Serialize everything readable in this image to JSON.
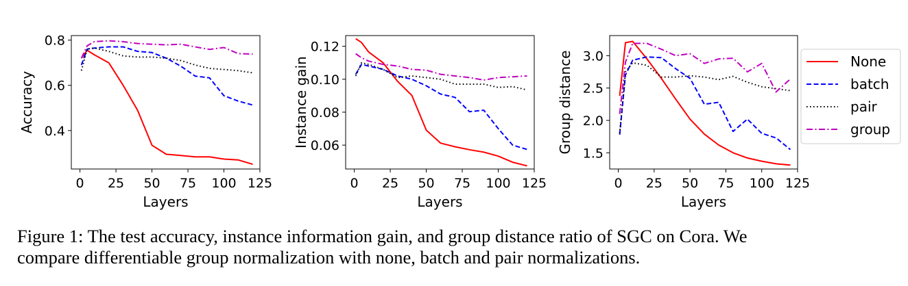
{
  "chart_data": [
    {
      "type": "line",
      "xlabel": "Layers",
      "ylabel": "Accuracy",
      "xlim": [
        -6,
        125
      ],
      "ylim": [
        0.23,
        0.82
      ],
      "xticks": [
        0,
        25,
        50,
        75,
        100,
        125
      ],
      "xtick_labels": [
        "0",
        "25",
        "50",
        "75",
        "100",
        "125"
      ],
      "yticks": [
        0.4,
        0.6,
        0.8
      ],
      "ytick_labels": [
        "0.4",
        "0.6",
        "0.8"
      ],
      "grid": false,
      "x": [
        1,
        5,
        10,
        20,
        30,
        40,
        50,
        60,
        70,
        80,
        90,
        100,
        110,
        120
      ],
      "series": [
        {
          "name": "None",
          "values": [
            0.72,
            0.755,
            0.735,
            0.7,
            0.6,
            0.49,
            0.335,
            0.295,
            0.29,
            0.284,
            0.284,
            0.274,
            0.27,
            0.251
          ]
        },
        {
          "name": "batch",
          "values": [
            0.69,
            0.76,
            0.765,
            0.77,
            0.77,
            0.75,
            0.745,
            0.72,
            0.685,
            0.641,
            0.633,
            0.554,
            0.53,
            0.513
          ]
        },
        {
          "name": "pair",
          "values": [
            0.665,
            0.76,
            0.765,
            0.75,
            0.73,
            0.725,
            0.725,
            0.72,
            0.71,
            0.69,
            0.675,
            0.67,
            0.665,
            0.655
          ]
        },
        {
          "name": "group",
          "values": [
            0.72,
            0.775,
            0.793,
            0.797,
            0.793,
            0.785,
            0.782,
            0.779,
            0.782,
            0.77,
            0.759,
            0.767,
            0.74,
            0.738
          ]
        }
      ]
    },
    {
      "type": "line",
      "xlabel": "Layers",
      "ylabel": "Instance gain",
      "xlim": [
        -6,
        125
      ],
      "ylim": [
        0.0455,
        0.1265
      ],
      "xticks": [
        0,
        25,
        50,
        75,
        100,
        125
      ],
      "xtick_labels": [
        "0",
        "25",
        "50",
        "75",
        "100",
        "125"
      ],
      "yticks": [
        0.06,
        0.08,
        0.1,
        0.12
      ],
      "ytick_labels": [
        "0.06",
        "0.08",
        "0.10",
        "0.12"
      ],
      "grid": false,
      "x": [
        1,
        5,
        10,
        20,
        30,
        40,
        50,
        60,
        70,
        80,
        90,
        100,
        110,
        120
      ],
      "series": [
        {
          "name": "None",
          "values": [
            0.1246,
            0.1223,
            0.1165,
            0.11,
            0.0988,
            0.0901,
            0.0691,
            0.0612,
            0.059,
            0.0572,
            0.0557,
            0.0533,
            0.0496,
            0.0474
          ]
        },
        {
          "name": "batch",
          "values": [
            0.103,
            0.109,
            0.108,
            0.106,
            0.102,
            0.1,
            0.096,
            0.091,
            0.089,
            0.0803,
            0.0812,
            0.07,
            0.06,
            0.0574
          ]
        },
        {
          "name": "pair",
          "values": [
            0.102,
            0.11,
            0.109,
            0.106,
            0.101,
            0.102,
            0.101,
            0.1,
            0.097,
            0.097,
            0.097,
            0.095,
            0.0955,
            0.0935
          ]
        },
        {
          "name": "group",
          "values": [
            0.1155,
            0.113,
            0.111,
            0.109,
            0.108,
            0.106,
            0.1055,
            0.103,
            0.102,
            0.101,
            0.0995,
            0.101,
            0.1015,
            0.102
          ]
        }
      ]
    },
    {
      "type": "line",
      "xlabel": "Layers",
      "ylabel": "Group distance",
      "xlim": [
        -6,
        125
      ],
      "ylim": [
        1.25,
        3.31
      ],
      "xticks": [
        0,
        25,
        50,
        75,
        100,
        125
      ],
      "xtick_labels": [
        "0",
        "25",
        "50",
        "75",
        "100",
        "125"
      ],
      "yticks": [
        1.5,
        2.0,
        2.5,
        3.0
      ],
      "ytick_labels": [
        "1.5",
        "2.0",
        "2.5",
        "3.0"
      ],
      "grid": false,
      "legend": "right-outside",
      "x": [
        1,
        5,
        10,
        20,
        30,
        40,
        50,
        60,
        70,
        80,
        90,
        100,
        110,
        120
      ],
      "series": [
        {
          "name": "None",
          "values": [
            2.38,
            3.2,
            3.22,
            2.95,
            2.65,
            2.33,
            2.02,
            1.79,
            1.62,
            1.5,
            1.42,
            1.37,
            1.33,
            1.31
          ]
        },
        {
          "name": "batch",
          "values": [
            1.78,
            2.7,
            2.93,
            2.98,
            2.97,
            2.8,
            2.65,
            2.25,
            2.28,
            1.83,
            2.02,
            1.8,
            1.73,
            1.55
          ]
        },
        {
          "name": "pair",
          "values": [
            1.8,
            2.75,
            2.89,
            2.85,
            2.67,
            2.67,
            2.69,
            2.67,
            2.63,
            2.68,
            2.59,
            2.52,
            2.49,
            2.46
          ]
        },
        {
          "name": "group",
          "values": [
            2.1,
            2.9,
            3.19,
            3.19,
            3.1,
            3.0,
            3.03,
            2.88,
            2.95,
            2.96,
            2.75,
            2.88,
            2.44,
            2.64
          ]
        }
      ]
    }
  ],
  "legend": {
    "entries": [
      "None",
      "batch",
      "pair",
      "group"
    ]
  },
  "series_styles": {
    "None": {
      "color": "#ff0000",
      "dash": "solid"
    },
    "batch": {
      "color": "#0000ff",
      "dash": "dashed"
    },
    "pair": {
      "color": "#000000",
      "dash": "dotted"
    },
    "group": {
      "color": "#bf00bf",
      "dash": "dashdot"
    }
  },
  "caption": {
    "line1": "Figure 1: The test accuracy, instance information gain, and group distance ratio of SGC on Cora. We",
    "line2": "compare differentiable group normalization with none, batch and pair normalizations."
  }
}
